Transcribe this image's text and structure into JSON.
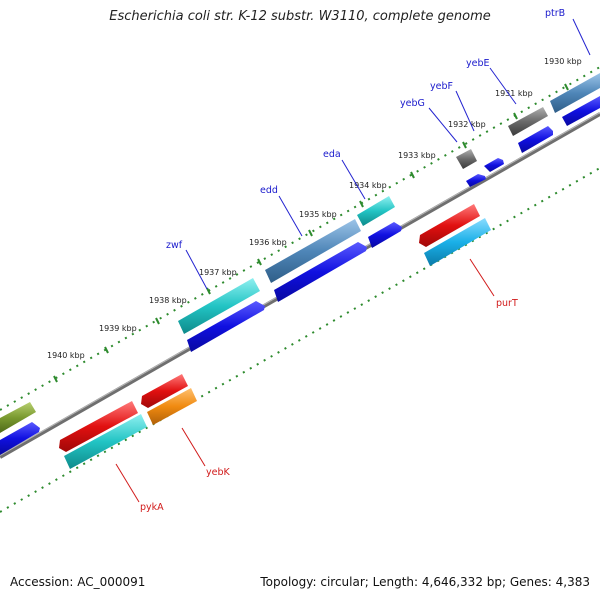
{
  "title": "Escherichia coli str. K-12 substr. W3110, complete genome",
  "footer": {
    "accession": "Accession: AC_000091",
    "topology": "Topology: circular; Length: 4,646,332 bp; Genes: 4,383"
  },
  "colors": {
    "backbone": "#7f7f7f",
    "tick_forward": "#2e8b2e",
    "label_forward": "#1a1acc",
    "label_reverse": "#d11a1a",
    "cds_blue": "#1010e0",
    "cds_cyan": "#22c4c4",
    "cds_red": "#e11010",
    "cds_orange": "#f08a10",
    "cds_gray": "#6a6a6a",
    "cds_steel": "#4f86b8",
    "cds_olive": "#7a9a30",
    "cds_skyblue": "#1ab0e8"
  },
  "kbp_ticks": [
    "1930 kbp",
    "1931 kbp",
    "1932 kbp",
    "1933 kbp",
    "1934 kbp",
    "1935 kbp",
    "1936 kbp",
    "1937 kbp",
    "1938 kbp",
    "1939 kbp",
    "1940 kbp"
  ],
  "genes_forward": [
    "ptrB",
    "yebE",
    "yebF",
    "yebG",
    "eda",
    "edd",
    "zwf"
  ],
  "genes_reverse": [
    "purT",
    "yebK",
    "pykA"
  ]
}
